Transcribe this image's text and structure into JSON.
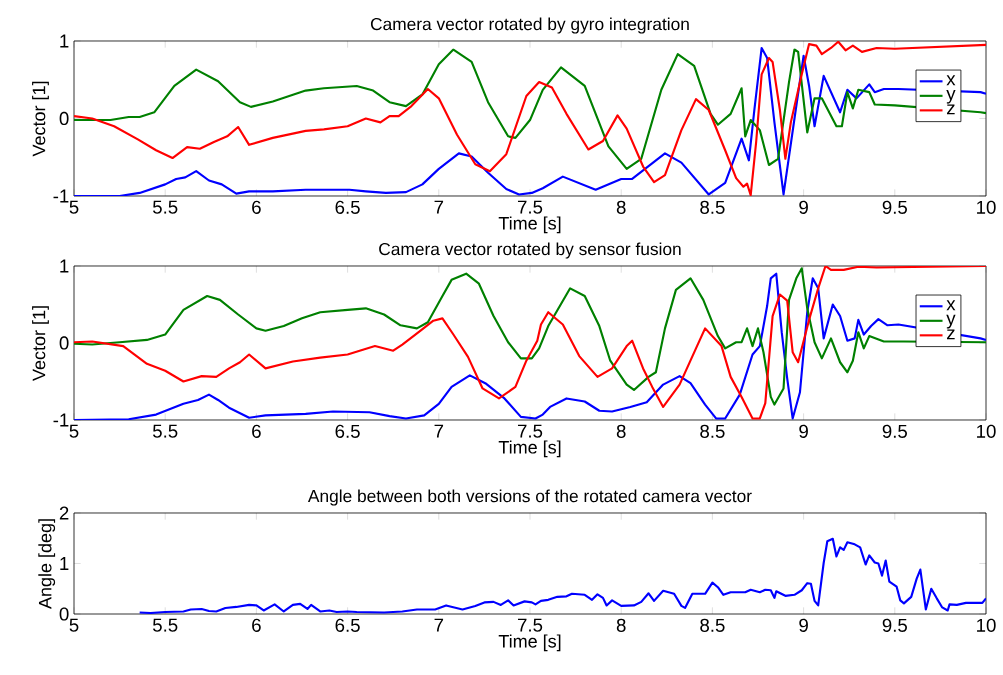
{
  "chart_data": [
    {
      "type": "line",
      "title": "Camera vector rotated by gyro integration",
      "xlabel": "Time [s]",
      "ylabel": "Vector [1]",
      "xlim": [
        5,
        10
      ],
      "ylim": [
        -1,
        1
      ],
      "xticks": [
        5,
        5.5,
        6,
        6.5,
        7,
        7.5,
        8,
        8.5,
        9,
        9.5,
        10
      ],
      "yticks": [
        -1,
        0,
        1
      ],
      "legend": "top right",
      "series": [
        {
          "name": "x",
          "color": "#0000ff",
          "x": [
            5.0,
            5.25,
            5.36,
            5.5,
            5.56,
            5.61,
            5.67,
            5.74,
            5.81,
            5.89,
            5.96,
            6.09,
            6.27,
            6.51,
            6.6,
            6.71,
            6.82,
            6.91,
            7.0,
            7.11,
            7.18,
            7.27,
            7.37,
            7.44,
            7.51,
            7.57,
            7.68,
            7.86,
            8.0,
            8.06,
            8.24,
            8.33,
            8.48,
            8.57,
            8.66,
            8.7,
            8.73,
            8.77,
            8.8,
            8.84,
            8.89,
            8.95,
            9.0,
            9.03,
            9.06,
            9.11,
            9.2,
            9.24,
            9.29,
            9.36,
            9.39,
            9.44,
            9.52,
            9.97,
            10.0
          ],
          "values": [
            -1,
            -1,
            -0.96,
            -0.85,
            -0.78,
            -0.76,
            -0.68,
            -0.8,
            -0.85,
            -0.97,
            -0.94,
            -0.94,
            -0.92,
            -0.92,
            -0.94,
            -0.96,
            -0.95,
            -0.85,
            -0.65,
            -0.45,
            -0.49,
            -0.7,
            -0.91,
            -0.98,
            -0.96,
            -0.9,
            -0.75,
            -0.92,
            -0.78,
            -0.78,
            -0.45,
            -0.57,
            -0.98,
            -0.83,
            -0.26,
            -0.54,
            0.11,
            0.91,
            0.78,
            -0.05,
            -0.98,
            0.0,
            0.81,
            0.42,
            -0.1,
            0.55,
            0.08,
            0.37,
            0.26,
            0.44,
            0.34,
            0.38,
            0.38,
            0.34,
            0.32
          ]
        },
        {
          "name": "y",
          "color": "#008000",
          "x": [
            5.0,
            5.2,
            5.3,
            5.36,
            5.44,
            5.55,
            5.67,
            5.79,
            5.91,
            5.97,
            6.09,
            6.27,
            6.37,
            6.55,
            6.64,
            6.73,
            6.82,
            6.91,
            7.0,
            7.08,
            7.18,
            7.27,
            7.38,
            7.42,
            7.5,
            7.57,
            7.67,
            7.8,
            7.93,
            8.03,
            8.11,
            8.22,
            8.31,
            8.4,
            8.49,
            8.53,
            8.6,
            8.66,
            8.68,
            8.71,
            8.76,
            8.81,
            8.86,
            8.92,
            8.95,
            8.97,
            9.02,
            9.06,
            9.1,
            9.18,
            9.21,
            9.24,
            9.27,
            9.3,
            9.36,
            9.39,
            9.5,
            9.97,
            10.0
          ],
          "values": [
            -0.02,
            -0.02,
            0.02,
            0.02,
            0.08,
            0.42,
            0.63,
            0.48,
            0.21,
            0.15,
            0.22,
            0.36,
            0.39,
            0.42,
            0.36,
            0.21,
            0.16,
            0.31,
            0.7,
            0.89,
            0.73,
            0.21,
            -0.23,
            -0.25,
            -0.02,
            0.37,
            0.66,
            0.42,
            -0.36,
            -0.65,
            -0.52,
            0.37,
            0.83,
            0.68,
            0.06,
            -0.08,
            0.06,
            0.39,
            -0.23,
            -0.02,
            -0.15,
            -0.6,
            -0.52,
            0.47,
            0.89,
            0.86,
            -0.18,
            0.26,
            0.26,
            -0.1,
            -0.1,
            0.34,
            0.13,
            0.37,
            0.34,
            0.18,
            0.17,
            0.08,
            0.07
          ]
        },
        {
          "name": "z",
          "color": "#ff0000",
          "x": [
            5.0,
            5.1,
            5.22,
            5.35,
            5.45,
            5.54,
            5.62,
            5.69,
            5.77,
            5.84,
            5.9,
            5.96,
            6.09,
            6.27,
            6.37,
            6.5,
            6.6,
            6.68,
            6.73,
            6.78,
            6.85,
            6.94,
            7.0,
            7.1,
            7.2,
            7.28,
            7.37,
            7.48,
            7.55,
            7.62,
            7.7,
            7.82,
            7.9,
            7.98,
            8.03,
            8.12,
            8.18,
            8.24,
            8.33,
            8.41,
            8.48,
            8.57,
            8.63,
            8.67,
            8.69,
            8.71,
            8.74,
            8.77,
            8.81,
            8.83,
            8.87,
            8.9,
            8.93,
            8.99,
            9.03,
            9.07,
            9.1,
            9.15,
            9.19,
            9.23,
            9.27,
            9.32,
            9.4,
            9.5,
            10.0
          ],
          "values": [
            0.03,
            0.0,
            -0.1,
            -0.27,
            -0.41,
            -0.51,
            -0.37,
            -0.39,
            -0.3,
            -0.23,
            -0.11,
            -0.34,
            -0.25,
            -0.16,
            -0.14,
            -0.1,
            0.0,
            -0.05,
            0.03,
            0.03,
            0.16,
            0.38,
            0.26,
            -0.21,
            -0.59,
            -0.68,
            -0.46,
            0.29,
            0.47,
            0.4,
            0.06,
            -0.4,
            -0.29,
            0.04,
            -0.13,
            -0.62,
            -0.82,
            -0.73,
            -0.15,
            0.25,
            0.11,
            -0.41,
            -0.77,
            -0.88,
            -0.84,
            -0.99,
            -0.3,
            0.57,
            0.78,
            0.73,
            0.11,
            -0.52,
            -0.05,
            0.57,
            0.96,
            0.94,
            0.83,
            0.91,
            0.99,
            0.88,
            0.94,
            0.86,
            0.91,
            0.9,
            0.95
          ]
        }
      ]
    },
    {
      "type": "line",
      "title": "Camera vector rotated by sensor fusion",
      "xlabel": "Time [s]",
      "ylabel": "Vector [1]",
      "xlim": [
        5,
        10
      ],
      "ylim": [
        -1,
        1
      ],
      "xticks": [
        5,
        5.5,
        6,
        6.5,
        7,
        7.5,
        8,
        8.5,
        9,
        9.5,
        10
      ],
      "yticks": [
        -1,
        0,
        1
      ],
      "legend": "top right",
      "series": [
        {
          "name": "x",
          "color": "#0000ff",
          "x": [
            5.0,
            5.3,
            5.45,
            5.6,
            5.68,
            5.74,
            5.79,
            5.85,
            5.96,
            6.05,
            6.27,
            6.42,
            6.62,
            6.73,
            6.82,
            6.92,
            7.0,
            7.07,
            7.17,
            7.26,
            7.36,
            7.45,
            7.53,
            7.57,
            7.61,
            7.7,
            7.8,
            7.88,
            7.95,
            8.05,
            8.14,
            8.23,
            8.32,
            8.38,
            8.46,
            8.52,
            8.57,
            8.65,
            8.72,
            8.76,
            8.8,
            8.82,
            8.85,
            8.88,
            8.91,
            8.94,
            8.98,
            9.02,
            9.05,
            9.08,
            9.11,
            9.16,
            9.2,
            9.24,
            9.28,
            9.3,
            9.33,
            9.37,
            9.41,
            9.46,
            9.52,
            9.97,
            10.0
          ],
          "values": [
            -1,
            -0.99,
            -0.93,
            -0.79,
            -0.74,
            -0.67,
            -0.74,
            -0.84,
            -0.97,
            -0.94,
            -0.92,
            -0.89,
            -0.9,
            -0.95,
            -0.98,
            -0.94,
            -0.79,
            -0.57,
            -0.42,
            -0.53,
            -0.72,
            -0.96,
            -0.98,
            -0.93,
            -0.83,
            -0.72,
            -0.76,
            -0.88,
            -0.89,
            -0.83,
            -0.77,
            -0.54,
            -0.43,
            -0.52,
            -0.8,
            -0.98,
            -0.98,
            -0.67,
            -0.15,
            -0.04,
            0.48,
            0.84,
            0.9,
            0.14,
            -0.46,
            -0.98,
            -0.64,
            0.4,
            0.84,
            0.71,
            0.06,
            0.5,
            0.35,
            0.03,
            0.06,
            0.3,
            0.11,
            0.22,
            0.31,
            0.23,
            0.24,
            0.06,
            0.04
          ]
        },
        {
          "name": "y",
          "color": "#008000",
          "x": [
            5.0,
            5.1,
            5.25,
            5.4,
            5.5,
            5.6,
            5.73,
            5.8,
            5.9,
            6.0,
            6.05,
            6.15,
            6.25,
            6.35,
            6.5,
            6.6,
            6.7,
            6.79,
            6.88,
            6.94,
            7.02,
            7.07,
            7.15,
            7.22,
            7.3,
            7.38,
            7.45,
            7.51,
            7.55,
            7.6,
            7.72,
            7.8,
            7.88,
            7.94,
            8.03,
            8.07,
            8.15,
            8.19,
            8.24,
            8.3,
            8.38,
            8.45,
            8.53,
            8.57,
            8.63,
            8.66,
            8.69,
            8.72,
            8.75,
            8.78,
            8.82,
            8.84,
            8.89,
            8.92,
            8.96,
            8.99,
            9.02,
            9.06,
            9.1,
            9.15,
            9.2,
            9.24,
            9.27,
            9.3,
            9.33,
            9.36,
            9.44,
            9.55,
            10.0
          ],
          "values": [
            -0.01,
            -0.02,
            0.01,
            0.04,
            0.11,
            0.43,
            0.61,
            0.56,
            0.37,
            0.19,
            0.16,
            0.22,
            0.32,
            0.4,
            0.43,
            0.45,
            0.37,
            0.23,
            0.19,
            0.27,
            0.61,
            0.82,
            0.9,
            0.77,
            0.35,
            0.01,
            -0.2,
            -0.2,
            -0.07,
            0.22,
            0.71,
            0.61,
            0.22,
            -0.23,
            -0.54,
            -0.61,
            -0.44,
            -0.38,
            0.19,
            0.69,
            0.84,
            0.56,
            0.09,
            -0.07,
            0.01,
            0.01,
            0.19,
            -0.04,
            0.19,
            -0.12,
            -0.7,
            -0.8,
            -0.59,
            0.56,
            0.84,
            0.97,
            0.45,
            0.01,
            -0.2,
            0.06,
            -0.25,
            -0.38,
            -0.23,
            0.14,
            -0.07,
            0.09,
            0.02,
            0.02,
            0.01
          ]
        },
        {
          "name": "z",
          "color": "#ff0000",
          "x": [
            5.0,
            5.1,
            5.27,
            5.4,
            5.5,
            5.6,
            5.7,
            5.78,
            5.85,
            5.91,
            5.96,
            6.05,
            6.2,
            6.35,
            6.5,
            6.65,
            6.75,
            6.8,
            6.9,
            6.97,
            7.02,
            7.08,
            7.16,
            7.24,
            7.33,
            7.42,
            7.48,
            7.54,
            7.56,
            7.6,
            7.68,
            7.77,
            7.87,
            7.95,
            8.03,
            8.06,
            8.12,
            8.17,
            8.23,
            8.32,
            8.41,
            8.46,
            8.55,
            8.6,
            8.66,
            8.72,
            8.76,
            8.79,
            8.83,
            8.87,
            8.91,
            8.94,
            8.97,
            9.03,
            9.08,
            9.12,
            9.15,
            9.22,
            9.3,
            9.4,
            10.0
          ],
          "values": [
            0.01,
            0.02,
            -0.04,
            -0.27,
            -0.36,
            -0.5,
            -0.43,
            -0.44,
            -0.33,
            -0.25,
            -0.15,
            -0.33,
            -0.24,
            -0.19,
            -0.15,
            -0.04,
            -0.1,
            -0.02,
            0.16,
            0.29,
            0.32,
            0.11,
            -0.18,
            -0.59,
            -0.72,
            -0.57,
            -0.23,
            0.03,
            0.24,
            0.4,
            0.24,
            -0.17,
            -0.44,
            -0.33,
            -0.04,
            0.03,
            -0.33,
            -0.57,
            -0.83,
            -0.54,
            -0.07,
            0.19,
            -0.04,
            -0.44,
            -0.7,
            -0.98,
            -0.98,
            -0.78,
            0.35,
            0.63,
            0.55,
            -0.12,
            -0.25,
            0.3,
            0.71,
            1.0,
            0.95,
            0.95,
            0.99,
            0.98,
            1.0
          ]
        }
      ]
    },
    {
      "type": "line",
      "title": "Angle between both versions of the rotated camera vector",
      "xlabel": "Time [s]",
      "ylabel": "Angle [deg]",
      "xlim": [
        5,
        10
      ],
      "ylim": [
        0,
        2
      ],
      "xticks": [
        5,
        5.5,
        6,
        6.5,
        7,
        7.5,
        8,
        8.5,
        9,
        9.5,
        10
      ],
      "yticks": [
        0,
        1,
        2
      ],
      "series": [
        {
          "color": "#0000ff",
          "x": [
            5.36,
            5.42,
            5.5,
            5.6,
            5.64,
            5.7,
            5.74,
            5.78,
            5.83,
            5.89,
            5.96,
            6.0,
            6.04,
            6.1,
            6.15,
            6.2,
            6.24,
            6.28,
            6.3,
            6.35,
            6.4,
            6.44,
            6.5,
            6.55,
            6.7,
            6.8,
            6.88,
            6.98,
            7.04,
            7.13,
            7.2,
            7.25,
            7.3,
            7.34,
            7.38,
            7.41,
            7.47,
            7.51,
            7.53,
            7.56,
            7.6,
            7.65,
            7.7,
            7.73,
            7.8,
            7.84,
            7.87,
            7.9,
            7.92,
            7.95,
            8.0,
            8.07,
            8.11,
            8.15,
            8.18,
            8.23,
            8.29,
            8.33,
            8.35,
            8.39,
            8.46,
            8.5,
            8.53,
            8.56,
            8.6,
            8.68,
            8.71,
            8.76,
            8.79,
            8.82,
            8.84,
            8.85,
            8.9,
            8.95,
            8.99,
            9.02,
            9.04,
            9.06,
            9.08,
            9.11,
            9.13,
            9.16,
            9.18,
            9.2,
            9.22,
            9.24,
            9.28,
            9.31,
            9.34,
            9.36,
            9.39,
            9.41,
            9.43,
            9.45,
            9.47,
            9.51,
            9.53,
            9.55,
            9.59,
            9.62,
            9.64,
            9.67,
            9.7,
            9.73,
            9.76,
            9.79,
            9.8,
            9.84,
            9.89,
            9.95,
            9.98,
            10.0
          ],
          "values": [
            0.03,
            0.02,
            0.04,
            0.05,
            0.09,
            0.1,
            0.06,
            0.05,
            0.12,
            0.14,
            0.18,
            0.17,
            0.07,
            0.19,
            0.05,
            0.18,
            0.2,
            0.1,
            0.18,
            0.05,
            0.07,
            0.04,
            0.05,
            0.04,
            0.03,
            0.05,
            0.09,
            0.09,
            0.17,
            0.09,
            0.16,
            0.23,
            0.24,
            0.18,
            0.27,
            0.17,
            0.25,
            0.23,
            0.19,
            0.26,
            0.28,
            0.34,
            0.35,
            0.4,
            0.38,
            0.28,
            0.39,
            0.32,
            0.17,
            0.27,
            0.16,
            0.17,
            0.24,
            0.41,
            0.26,
            0.46,
            0.4,
            0.16,
            0.12,
            0.4,
            0.4,
            0.62,
            0.53,
            0.38,
            0.43,
            0.43,
            0.48,
            0.43,
            0.48,
            0.47,
            0.32,
            0.45,
            0.36,
            0.38,
            0.47,
            0.61,
            0.6,
            0.26,
            0.17,
            1.01,
            1.44,
            1.49,
            1.14,
            1.32,
            1.27,
            1.42,
            1.38,
            1.32,
            0.98,
            1.16,
            1.02,
            1.0,
            0.76,
            1.06,
            0.64,
            0.54,
            0.27,
            0.21,
            0.34,
            0.7,
            0.88,
            0.09,
            0.5,
            0.31,
            0.13,
            0.07,
            0.19,
            0.18,
            0.22,
            0.22,
            0.22,
            0.31
          ]
        }
      ]
    }
  ]
}
